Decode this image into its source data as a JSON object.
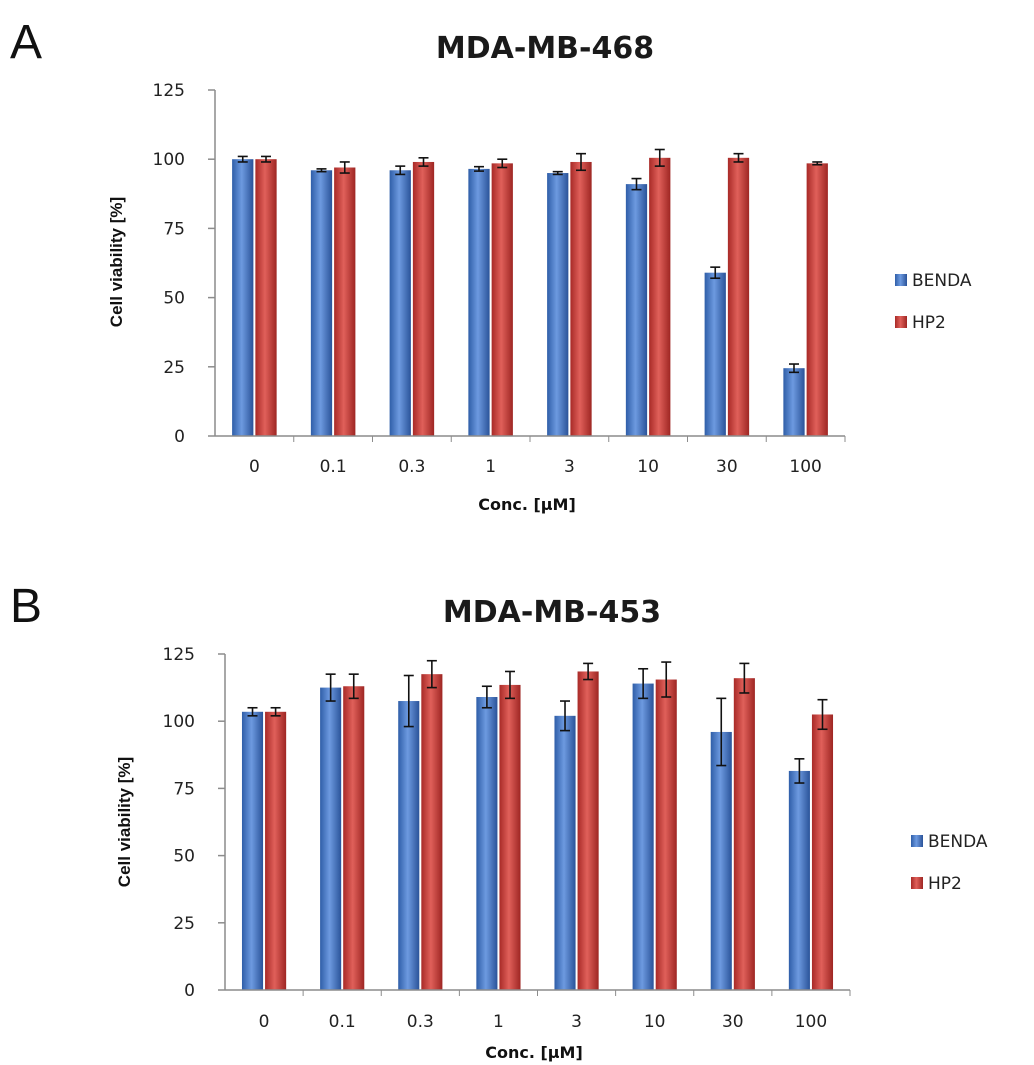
{
  "colors": {
    "BENDA": "#3f73c2",
    "HP2": "#c43a36",
    "axis": "#8c8c8c",
    "errorbar": "#111111"
  },
  "chart_data": [
    {
      "panel": "A",
      "type": "bar",
      "title": "MDA-MB-468",
      "xlabel": "Conc. [µM]",
      "ylabel": "Cell viability [%]",
      "ylim": [
        0,
        125
      ],
      "yticks": [
        "0",
        "25",
        "50",
        "75",
        "100",
        "125"
      ],
      "grid": false,
      "legend_position": "right",
      "categories": [
        "0",
        "0.1",
        "0.3",
        "1",
        "3",
        "10",
        "30",
        "100"
      ],
      "series": [
        {
          "name": "BENDA",
          "values": [
            100,
            96,
            96,
            96.5,
            95,
            91,
            59,
            24.5
          ],
          "errors": [
            1,
            0.5,
            1.5,
            0.8,
            0.5,
            2,
            2,
            1.5
          ]
        },
        {
          "name": "HP2",
          "values": [
            100,
            97,
            99,
            98.5,
            99,
            100.5,
            100.5,
            98.5
          ],
          "errors": [
            1,
            2,
            1.5,
            1.5,
            3,
            3,
            1.5,
            0.5
          ]
        }
      ]
    },
    {
      "panel": "B",
      "type": "bar",
      "title": "MDA-MB-453",
      "xlabel": "Conc. [µM]",
      "ylabel": "Cell viability [%]",
      "ylim": [
        0,
        125
      ],
      "yticks": [
        "0",
        "25",
        "50",
        "75",
        "100",
        "125"
      ],
      "grid": false,
      "legend_position": "right",
      "categories": [
        "0",
        "0.1",
        "0.3",
        "1",
        "3",
        "10",
        "30",
        "100"
      ],
      "series": [
        {
          "name": "BENDA",
          "values": [
            103.5,
            112.5,
            107.5,
            109,
            102,
            114,
            96,
            81.5
          ],
          "errors": [
            1.5,
            5,
            9.5,
            4,
            5.5,
            5.5,
            12.5,
            4.5
          ]
        },
        {
          "name": "HP2",
          "values": [
            103.5,
            113,
            117.5,
            113.5,
            118.5,
            115.5,
            116,
            102.5
          ],
          "errors": [
            1.5,
            4.5,
            5,
            5,
            3,
            6.5,
            5.5,
            5.5
          ]
        }
      ]
    }
  ]
}
